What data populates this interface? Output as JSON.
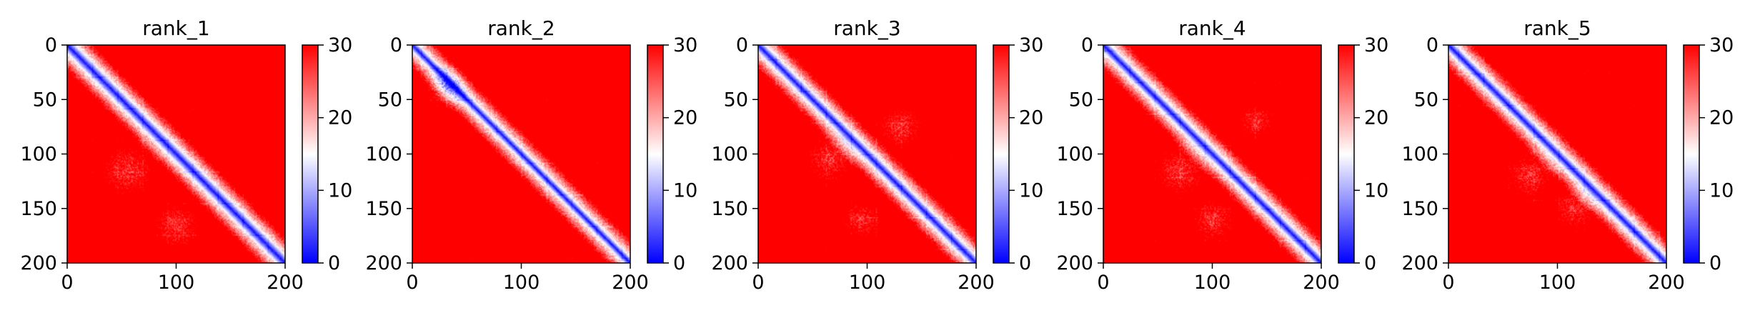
{
  "chart_data": [
    {
      "type": "heatmap",
      "title": "rank_1",
      "xlim": [
        0,
        200
      ],
      "ylim": [
        0,
        200
      ],
      "y_inverted": true,
      "x_ticks": [
        "0",
        "100",
        "200"
      ],
      "y_ticks": [
        "0",
        "50",
        "100",
        "150",
        "200"
      ],
      "xlabel": "",
      "ylabel": "",
      "colorbar": {
        "range": [
          0,
          30
        ],
        "ticks": [
          "0",
          "10",
          "20",
          "30"
        ],
        "colormap": "bwr"
      },
      "description_values": {
        "diagonal": 0,
        "near_diagonal_band_width": 8,
        "off_diagonal": 30
      },
      "light_regions": [
        {
          "x": 55,
          "y": 115,
          "r": 35
        },
        {
          "x": 100,
          "y": 165,
          "r": 30
        }
      ]
    },
    {
      "type": "heatmap",
      "title": "rank_2",
      "xlim": [
        0,
        200
      ],
      "ylim": [
        0,
        200
      ],
      "y_inverted": true,
      "x_ticks": [
        "0",
        "100",
        "200"
      ],
      "y_ticks": [
        "0",
        "50",
        "100",
        "150",
        "200"
      ],
      "xlabel": "",
      "ylabel": "",
      "colorbar": {
        "range": [
          0,
          30
        ],
        "ticks": [
          "0",
          "10",
          "20",
          "30"
        ],
        "colormap": "bwr"
      },
      "description_values": {
        "diagonal": 0,
        "near_diagonal_band_width": 6,
        "off_diagonal": 30
      },
      "light_regions": [
        {
          "x": 30,
          "y": 40,
          "r": 25
        }
      ]
    },
    {
      "type": "heatmap",
      "title": "rank_3",
      "xlim": [
        0,
        200
      ],
      "ylim": [
        0,
        200
      ],
      "y_inverted": true,
      "x_ticks": [
        "0",
        "100",
        "200"
      ],
      "y_ticks": [
        "0",
        "50",
        "100",
        "150",
        "200"
      ],
      "xlabel": "",
      "ylabel": "",
      "colorbar": {
        "range": [
          0,
          30
        ],
        "ticks": [
          "0",
          "10",
          "20",
          "30"
        ],
        "colormap": "bwr"
      },
      "description_values": {
        "diagonal": 0,
        "near_diagonal_band_width": 7,
        "off_diagonal": 30
      },
      "light_regions": [
        {
          "x": 65,
          "y": 105,
          "r": 30
        },
        {
          "x": 130,
          "y": 75,
          "r": 28
        },
        {
          "x": 95,
          "y": 160,
          "r": 25
        }
      ]
    },
    {
      "type": "heatmap",
      "title": "rank_4",
      "xlim": [
        0,
        200
      ],
      "ylim": [
        0,
        200
      ],
      "y_inverted": true,
      "x_ticks": [
        "0",
        "100",
        "200"
      ],
      "y_ticks": [
        "0",
        "50",
        "100",
        "150",
        "200"
      ],
      "xlabel": "",
      "ylabel": "",
      "colorbar": {
        "range": [
          0,
          30
        ],
        "ticks": [
          "0",
          "10",
          "20",
          "30"
        ],
        "colormap": "bwr"
      },
      "description_values": {
        "diagonal": 0,
        "near_diagonal_band_width": 7,
        "off_diagonal": 30
      },
      "light_regions": [
        {
          "x": 70,
          "y": 115,
          "r": 32
        },
        {
          "x": 100,
          "y": 160,
          "r": 28
        },
        {
          "x": 140,
          "y": 70,
          "r": 22
        }
      ]
    },
    {
      "type": "heatmap",
      "title": "rank_5",
      "xlim": [
        0,
        200
      ],
      "ylim": [
        0,
        200
      ],
      "y_inverted": true,
      "x_ticks": [
        "0",
        "100",
        "200"
      ],
      "y_ticks": [
        "0",
        "50",
        "100",
        "150",
        "200"
      ],
      "xlabel": "",
      "ylabel": "",
      "colorbar": {
        "range": [
          0,
          30
        ],
        "ticks": [
          "0",
          "10",
          "20",
          "30"
        ],
        "colormap": "bwr"
      },
      "description_values": {
        "diagonal": 0,
        "near_diagonal_band_width": 7,
        "off_diagonal": 30
      },
      "light_regions": [
        {
          "x": 75,
          "y": 120,
          "r": 30
        },
        {
          "x": 115,
          "y": 150,
          "r": 26
        }
      ]
    }
  ],
  "colors": {
    "low": "#0000ff",
    "mid": "#ffffff",
    "high": "#ff0000",
    "axis": "#000000"
  }
}
